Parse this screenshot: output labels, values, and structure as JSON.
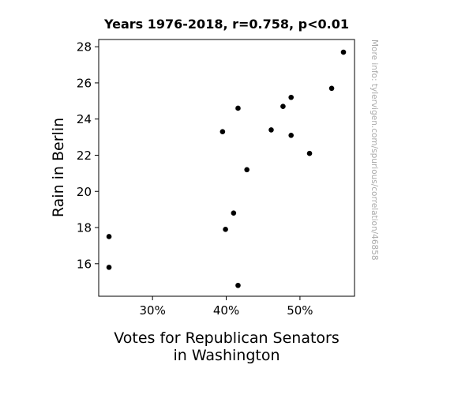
{
  "chart_data": {
    "type": "scatter",
    "title": "Years 1976-2018, r=0.758, p<0.01",
    "xlabel_lines": [
      "Votes for Republican Senators",
      "in Washington"
    ],
    "ylabel": "Rain in Berlin",
    "x_ticks": [
      {
        "value": 0.3,
        "label": "30%"
      },
      {
        "value": 0.4,
        "label": "40%"
      },
      {
        "value": 0.5,
        "label": "50%"
      }
    ],
    "y_ticks": [
      {
        "value": 16,
        "label": "16"
      },
      {
        "value": 18,
        "label": "18"
      },
      {
        "value": 20,
        "label": "20"
      },
      {
        "value": 22,
        "label": "22"
      },
      {
        "value": 24,
        "label": "24"
      },
      {
        "value": 26,
        "label": "26"
      },
      {
        "value": 28,
        "label": "28"
      }
    ],
    "xlim": [
      0.227,
      0.574
    ],
    "ylim": [
      14.2,
      28.4
    ],
    "grid": false,
    "marker_color": "#000000",
    "points": [
      {
        "x": 0.241,
        "y": 17.5
      },
      {
        "x": 0.241,
        "y": 15.8
      },
      {
        "x": 0.395,
        "y": 23.3
      },
      {
        "x": 0.399,
        "y": 17.9
      },
      {
        "x": 0.41,
        "y": 18.8
      },
      {
        "x": 0.416,
        "y": 24.6
      },
      {
        "x": 0.416,
        "y": 14.8
      },
      {
        "x": 0.428,
        "y": 21.2
      },
      {
        "x": 0.461,
        "y": 23.4
      },
      {
        "x": 0.477,
        "y": 24.7
      },
      {
        "x": 0.488,
        "y": 25.2
      },
      {
        "x": 0.488,
        "y": 23.1
      },
      {
        "x": 0.513,
        "y": 22.1
      },
      {
        "x": 0.543,
        "y": 25.7
      },
      {
        "x": 0.559,
        "y": 27.7
      }
    ]
  },
  "watermark": "More info: tylervigen.com/spurious/correlation/46858"
}
